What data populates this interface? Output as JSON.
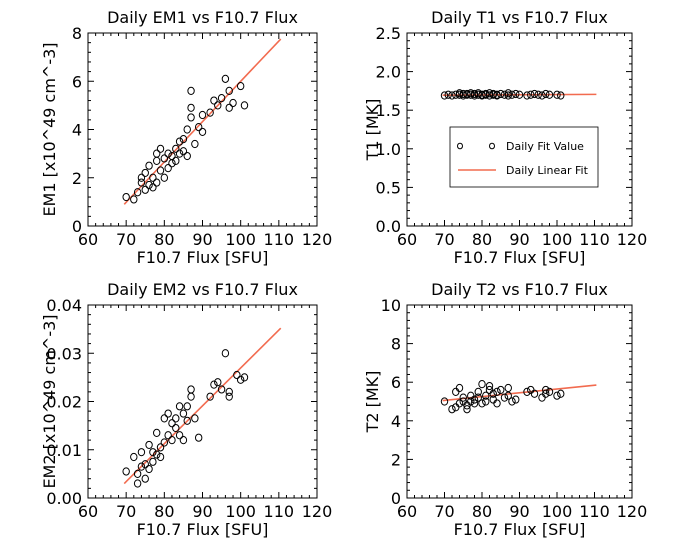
{
  "colors": {
    "fit_line": "#f26b4f",
    "points": "#000000",
    "background": "#ffffff"
  },
  "chart_data": [
    {
      "type": "scatter",
      "title": "Daily EM1 vs F10.7 Flux",
      "xlabel": "F10.7 Flux [SFU]",
      "ylabel": "EM1 [x10^49 cm^-3]",
      "xlim": [
        60,
        120
      ],
      "ylim": [
        0,
        8
      ],
      "xticks": [
        60,
        70,
        80,
        90,
        100,
        110,
        120
      ],
      "yticks": [
        0,
        2,
        4,
        6,
        8
      ],
      "ytick_labels": [
        "0",
        "2",
        "4",
        "6",
        "8"
      ],
      "points": [
        [
          70,
          1.2
        ],
        [
          72,
          1.1
        ],
        [
          73,
          1.4
        ],
        [
          74,
          1.8
        ],
        [
          74,
          2.0
        ],
        [
          75,
          1.5
        ],
        [
          75,
          2.2
        ],
        [
          76,
          1.7
        ],
        [
          76,
          2.5
        ],
        [
          77,
          1.6
        ],
        [
          77,
          2.0
        ],
        [
          78,
          1.8
        ],
        [
          78,
          2.7
        ],
        [
          78,
          3.0
        ],
        [
          79,
          2.3
        ],
        [
          79,
          3.2
        ],
        [
          80,
          2.0
        ],
        [
          80,
          2.8
        ],
        [
          81,
          2.4
        ],
        [
          81,
          3.0
        ],
        [
          82,
          2.6
        ],
        [
          82,
          2.9
        ],
        [
          83,
          3.2
        ],
        [
          83,
          2.7
        ],
        [
          84,
          3.5
        ],
        [
          84,
          3.0
        ],
        [
          85,
          3.1
        ],
        [
          85,
          3.6
        ],
        [
          86,
          4.0
        ],
        [
          86,
          2.9
        ],
        [
          87,
          4.5
        ],
        [
          87,
          4.9
        ],
        [
          87,
          5.6
        ],
        [
          88,
          3.4
        ],
        [
          89,
          4.1
        ],
        [
          90,
          3.9
        ],
        [
          90,
          4.6
        ],
        [
          92,
          4.7
        ],
        [
          93,
          5.2
        ],
        [
          94,
          5.0
        ],
        [
          95,
          5.3
        ],
        [
          96,
          6.1
        ],
        [
          97,
          4.9
        ],
        [
          97,
          5.6
        ],
        [
          98,
          5.1
        ],
        [
          100,
          5.8
        ],
        [
          101,
          5.0
        ]
      ],
      "fit_line": [
        [
          69.5,
          0.9
        ],
        [
          110.5,
          7.75
        ]
      ]
    },
    {
      "type": "scatter",
      "title": "Daily T1 vs F10.7 Flux",
      "xlabel": "F10.7 Flux [SFU]",
      "ylabel": "T1 [MK]",
      "xlim": [
        60,
        120
      ],
      "ylim": [
        0,
        2.5
      ],
      "xticks": [
        60,
        70,
        80,
        90,
        100,
        110,
        120
      ],
      "yticks": [
        0,
        0.5,
        1.0,
        1.5,
        2.0,
        2.5
      ],
      "ytick_labels": [
        "0.0",
        "0.5",
        "1.0",
        "1.5",
        "2.0",
        "2.5"
      ],
      "points": [
        [
          70,
          1.69
        ],
        [
          71,
          1.7
        ],
        [
          72,
          1.69
        ],
        [
          73,
          1.7
        ],
        [
          74,
          1.7
        ],
        [
          74,
          1.72
        ],
        [
          75,
          1.71
        ],
        [
          75,
          1.69
        ],
        [
          76,
          1.7
        ],
        [
          76,
          1.71
        ],
        [
          77,
          1.7
        ],
        [
          77,
          1.72
        ],
        [
          78,
          1.69
        ],
        [
          78,
          1.71
        ],
        [
          79,
          1.7
        ],
        [
          79,
          1.72
        ],
        [
          80,
          1.7
        ],
        [
          80,
          1.69
        ],
        [
          81,
          1.71
        ],
        [
          81,
          1.7
        ],
        [
          82,
          1.72
        ],
        [
          82,
          1.69
        ],
        [
          83,
          1.7
        ],
        [
          83,
          1.71
        ],
        [
          84,
          1.7
        ],
        [
          84,
          1.69
        ],
        [
          85,
          1.71
        ],
        [
          86,
          1.7
        ],
        [
          87,
          1.72
        ],
        [
          87,
          1.69
        ],
        [
          88,
          1.7
        ],
        [
          89,
          1.71
        ],
        [
          90,
          1.7
        ],
        [
          92,
          1.69
        ],
        [
          93,
          1.7
        ],
        [
          94,
          1.71
        ],
        [
          95,
          1.7
        ],
        [
          96,
          1.69
        ],
        [
          97,
          1.71
        ],
        [
          98,
          1.7
        ],
        [
          100,
          1.7
        ],
        [
          101,
          1.69
        ]
      ],
      "fit_line": [
        [
          69.5,
          1.695
        ],
        [
          110.5,
          1.705
        ]
      ],
      "legend": {
        "position": "center-right",
        "entries": [
          {
            "label": "Daily Fit Value",
            "kind": "points"
          },
          {
            "label": "Daily Linear Fit",
            "kind": "line"
          }
        ]
      }
    },
    {
      "type": "scatter",
      "title": "Daily EM2 vs F10.7 Flux",
      "xlabel": "F10.7 Flux [SFU]",
      "ylabel": "EM2 [x10^49 cm^-3]",
      "xlim": [
        60,
        120
      ],
      "ylim": [
        0,
        0.04
      ],
      "xticks": [
        60,
        70,
        80,
        90,
        100,
        110,
        120
      ],
      "yticks": [
        0,
        0.01,
        0.02,
        0.03,
        0.04
      ],
      "ytick_labels": [
        "0.00",
        "0.01",
        "0.02",
        "0.03",
        "0.04"
      ],
      "points": [
        [
          70,
          0.0055
        ],
        [
          72,
          0.0085
        ],
        [
          73,
          0.005
        ],
        [
          73,
          0.003
        ],
        [
          74,
          0.0065
        ],
        [
          74,
          0.0095
        ],
        [
          75,
          0.004
        ],
        [
          75,
          0.007
        ],
        [
          76,
          0.006
        ],
        [
          76,
          0.011
        ],
        [
          77,
          0.0095
        ],
        [
          77,
          0.0075
        ],
        [
          78,
          0.009
        ],
        [
          78,
          0.0135
        ],
        [
          79,
          0.0085
        ],
        [
          79,
          0.0105
        ],
        [
          80,
          0.0165
        ],
        [
          80,
          0.0115
        ],
        [
          81,
          0.013
        ],
        [
          81,
          0.0175
        ],
        [
          82,
          0.012
        ],
        [
          82,
          0.0155
        ],
        [
          83,
          0.0165
        ],
        [
          83,
          0.0145
        ],
        [
          84,
          0.019
        ],
        [
          84,
          0.013
        ],
        [
          85,
          0.0175
        ],
        [
          85,
          0.012
        ],
        [
          86,
          0.019
        ],
        [
          86,
          0.016
        ],
        [
          87,
          0.0225
        ],
        [
          87,
          0.021
        ],
        [
          88,
          0.0165
        ],
        [
          89,
          0.0125
        ],
        [
          92,
          0.021
        ],
        [
          93,
          0.0235
        ],
        [
          94,
          0.024
        ],
        [
          95,
          0.0225
        ],
        [
          96,
          0.03
        ],
        [
          97,
          0.022
        ],
        [
          97,
          0.021
        ],
        [
          99,
          0.0255
        ],
        [
          100,
          0.0245
        ],
        [
          101,
          0.025
        ]
      ],
      "fit_line": [
        [
          69.5,
          0.003
        ],
        [
          110.5,
          0.0352
        ]
      ]
    },
    {
      "type": "scatter",
      "title": "Daily T2 vs F10.7 Flux",
      "xlabel": "F10.7 Flux [SFU]",
      "ylabel": "T2 [MK]",
      "xlim": [
        60,
        120
      ],
      "ylim": [
        0,
        10
      ],
      "xticks": [
        60,
        70,
        80,
        90,
        100,
        110,
        120
      ],
      "yticks": [
        0,
        2,
        4,
        6,
        8,
        10
      ],
      "ytick_labels": [
        "0",
        "2",
        "4",
        "6",
        "8",
        "10"
      ],
      "points": [
        [
          70,
          5.0
        ],
        [
          72,
          4.6
        ],
        [
          73,
          4.7
        ],
        [
          73,
          5.5
        ],
        [
          74,
          5.7
        ],
        [
          74,
          4.9
        ],
        [
          75,
          5.2
        ],
        [
          75,
          5.0
        ],
        [
          76,
          4.6
        ],
        [
          76,
          4.8
        ],
        [
          77,
          5.0
        ],
        [
          77,
          5.3
        ],
        [
          78,
          4.9
        ],
        [
          78,
          5.1
        ],
        [
          79,
          5.5
        ],
        [
          79,
          5.2
        ],
        [
          80,
          5.9
        ],
        [
          80,
          4.9
        ],
        [
          81,
          5.0
        ],
        [
          81,
          5.3
        ],
        [
          82,
          5.6
        ],
        [
          82,
          5.8
        ],
        [
          83,
          5.4
        ],
        [
          83,
          5.1
        ],
        [
          84,
          5.5
        ],
        [
          84,
          4.9
        ],
        [
          85,
          5.6
        ],
        [
          86,
          5.2
        ],
        [
          87,
          5.7
        ],
        [
          87,
          5.3
        ],
        [
          88,
          5.0
        ],
        [
          89,
          5.1
        ],
        [
          92,
          5.5
        ],
        [
          93,
          5.6
        ],
        [
          94,
          5.4
        ],
        [
          96,
          5.2
        ],
        [
          97,
          5.6
        ],
        [
          97,
          5.4
        ],
        [
          98,
          5.5
        ],
        [
          100,
          5.3
        ],
        [
          101,
          5.4
        ]
      ],
      "fit_line": [
        [
          69.5,
          5.05
        ],
        [
          110.5,
          5.85
        ]
      ]
    }
  ]
}
